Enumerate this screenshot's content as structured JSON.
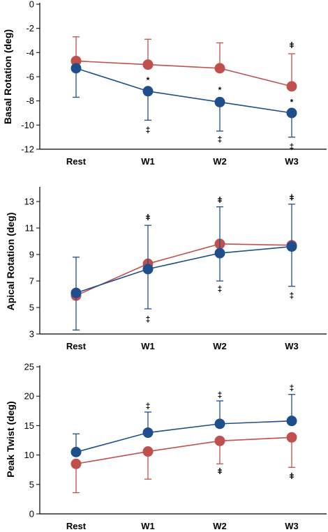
{
  "colors": {
    "red": "#C0504D",
    "blue": "#1F4E8C",
    "axis": "#000000"
  },
  "chart_data": [
    {
      "type": "line",
      "ylabel": "Basal Rotation (deg)",
      "categories": [
        "Rest",
        "W1",
        "W2",
        "W3"
      ],
      "ylim": [
        -12,
        0
      ],
      "yticks": [
        0,
        -2,
        -4,
        -6,
        -8,
        -10,
        -12
      ],
      "series": [
        {
          "color": "red",
          "values": [
            -4.7,
            -5.0,
            -5.3,
            -6.8
          ],
          "error_upper": [
            -2.7,
            -2.9,
            -3.2,
            -4.1
          ],
          "error_lower": [
            -4.7,
            -5.0,
            -5.3,
            -6.8
          ]
        },
        {
          "color": "blue",
          "values": [
            -5.3,
            -7.2,
            -8.1,
            -9.0
          ],
          "error_upper": [
            -5.3,
            -7.2,
            -8.1,
            -9.0
          ],
          "error_lower": [
            -7.7,
            -9.6,
            -10.5,
            -11.0
          ]
        }
      ],
      "annotations": [
        {
          "cat": 3,
          "y": -3.4,
          "text": "ǂ"
        },
        {
          "cat": 1,
          "y": -6.3,
          "text": "*"
        },
        {
          "cat": 2,
          "y": -7.1,
          "text": "*"
        },
        {
          "cat": 3,
          "y": -8.1,
          "text": "*"
        },
        {
          "cat": 1,
          "y": -10.4,
          "text": "‡"
        },
        {
          "cat": 2,
          "y": -11.2,
          "text": "‡"
        },
        {
          "cat": 3,
          "y": -11.8,
          "text": "‡"
        }
      ]
    },
    {
      "type": "line",
      "ylabel": "Apical Rotation (deg)",
      "categories": [
        "Rest",
        "W1",
        "W2",
        "W3"
      ],
      "ylim": [
        3,
        14
      ],
      "yticks": [
        3,
        5,
        7,
        9,
        11,
        13
      ],
      "series": [
        {
          "color": "red",
          "values": [
            5.9,
            8.3,
            9.8,
            9.7
          ],
          "error_upper": [
            5.9,
            8.3,
            9.8,
            9.7
          ],
          "error_lower": [
            5.9,
            8.3,
            9.8,
            9.7
          ]
        },
        {
          "color": "blue",
          "values": [
            6.1,
            7.9,
            9.1,
            9.6
          ],
          "error_upper": [
            8.8,
            11.2,
            12.6,
            12.8
          ],
          "error_lower": [
            3.3,
            4.9,
            7.0,
            6.6
          ]
        }
      ],
      "annotations": [
        {
          "cat": 1,
          "y": 11.8,
          "text": "ǂ"
        },
        {
          "cat": 2,
          "y": 13.1,
          "text": "ǂ"
        },
        {
          "cat": 3,
          "y": 13.3,
          "text": "ǂ"
        },
        {
          "cat": 1,
          "y": 4.1,
          "text": "‡"
        },
        {
          "cat": 2,
          "y": 6.4,
          "text": "‡"
        },
        {
          "cat": 3,
          "y": 5.9,
          "text": "‡"
        }
      ]
    },
    {
      "type": "line",
      "ylabel": "Peak Twist (deg)",
      "categories": [
        "Rest",
        "W1",
        "W2",
        "W3"
      ],
      "ylim": [
        0,
        25
      ],
      "yticks": [
        0,
        5,
        10,
        15,
        20,
        25
      ],
      "series": [
        {
          "color": "red",
          "values": [
            8.5,
            10.6,
            12.4,
            13.0
          ],
          "error_upper": [
            8.5,
            10.6,
            12.4,
            13.0
          ],
          "error_lower": [
            3.6,
            5.9,
            8.5,
            7.9
          ]
        },
        {
          "color": "blue",
          "values": [
            10.5,
            13.8,
            15.3,
            15.8
          ],
          "error_upper": [
            13.6,
            17.3,
            19.2,
            20.3
          ],
          "error_lower": [
            10.5,
            13.8,
            15.3,
            15.8
          ]
        }
      ],
      "annotations": [
        {
          "cat": 1,
          "y": 18.3,
          "text": "‡"
        },
        {
          "cat": 2,
          "y": 20.2,
          "text": "‡"
        },
        {
          "cat": 3,
          "y": 21.4,
          "text": "‡"
        },
        {
          "cat": 2,
          "y": 7.2,
          "text": "ǂ"
        },
        {
          "cat": 3,
          "y": 6.4,
          "text": "ǂ"
        }
      ]
    }
  ]
}
